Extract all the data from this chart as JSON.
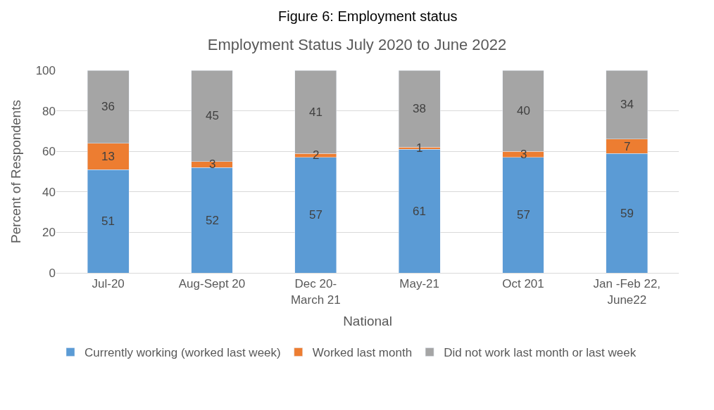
{
  "chart_data": {
    "type": "bar",
    "stacked": true,
    "title": "Employment Status July 2020 to June 2022",
    "annotations": [
      "Figure 6: Employment status"
    ],
    "xlabel": "National",
    "ylabel": "Percent of Respondents",
    "categories": [
      "Jul-20",
      "Aug-Sept 20",
      "Dec 20-\nMarch 21",
      "May-21",
      "Oct 201",
      "Jan -Feb 22,\nJune22"
    ],
    "series": [
      {
        "name": "Currently working (worked last week)",
        "color": "#5b9bd5",
        "values": [
          51,
          52,
          57,
          61,
          57,
          59
        ]
      },
      {
        "name": "Worked last month",
        "color": "#ed7d31",
        "values": [
          13,
          3,
          2,
          1,
          3,
          7
        ]
      },
      {
        "name": "Did not work last month or last week",
        "color": "#a5a5a5",
        "values": [
          36,
          45,
          41,
          38,
          40,
          34
        ]
      }
    ],
    "ylim": [
      0,
      100
    ],
    "yticks": [
      0,
      20,
      40,
      60,
      80,
      100
    ],
    "grid": "y",
    "legend": "bottom",
    "data_labels": true
  }
}
